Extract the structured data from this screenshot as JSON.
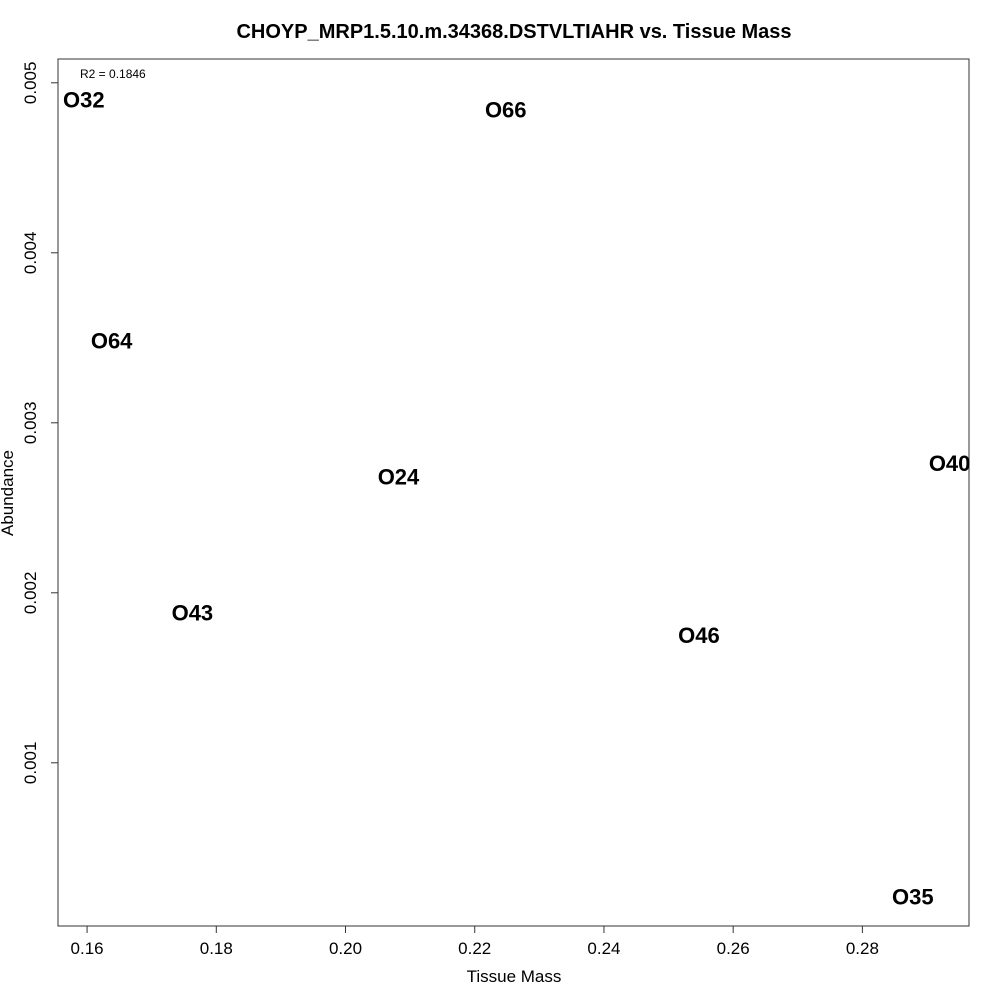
{
  "chart_data": {
    "type": "scatter",
    "title": "CHOYP_MRP1.5.10.m.34368.DSTVLTIAHR vs. Tissue Mass",
    "xlabel": "Tissue Mass",
    "ylabel": "Abundance",
    "annotation": "R2 = 0.1846",
    "xlim": [
      0.1555,
      0.2965
    ],
    "ylim": [
      4e-05,
      0.00514
    ],
    "xticks": [
      0.16,
      0.18,
      0.2,
      0.22,
      0.24,
      0.26,
      0.28
    ],
    "xtick_labels": [
      "0.16",
      "0.18",
      "0.20",
      "0.22",
      "0.24",
      "0.26",
      "0.28"
    ],
    "yticks": [
      0.001,
      0.002,
      0.003,
      0.004,
      0.005
    ],
    "ytick_labels": [
      "0.001",
      "0.002",
      "0.003",
      "0.004",
      "0.005"
    ],
    "grid": false,
    "points": [
      {
        "label": "O32",
        "x": 0.1595,
        "y": 0.0049
      },
      {
        "label": "O66",
        "x": 0.2248,
        "y": 0.00484
      },
      {
        "label": "O64",
        "x": 0.1638,
        "y": 0.00348
      },
      {
        "label": "O24",
        "x": 0.2082,
        "y": 0.00268
      },
      {
        "label": "O40",
        "x": 0.2935,
        "y": 0.00276
      },
      {
        "label": "O43",
        "x": 0.1763,
        "y": 0.00188
      },
      {
        "label": "O46",
        "x": 0.2547,
        "y": 0.00175
      },
      {
        "label": "O35",
        "x": 0.2878,
        "y": 0.00021
      }
    ]
  }
}
